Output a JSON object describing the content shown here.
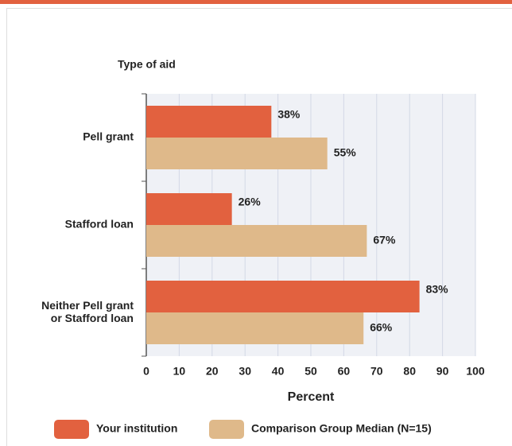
{
  "chart_data": {
    "type": "bar",
    "orientation": "horizontal",
    "y_axis_title": "Type of aid",
    "x_axis_title": "Percent",
    "categories": [
      "Pell grant",
      "Stafford loan",
      "Neither Pell grant\nor Stafford loan"
    ],
    "series": [
      {
        "name": "Your institution",
        "color": "#e2613f",
        "values": [
          38,
          26,
          83
        ],
        "value_labels": [
          "38%",
          "26%",
          "83%"
        ]
      },
      {
        "name": "Comparison Group Median (N=15)",
        "color": "#dfb98a",
        "values": [
          55,
          67,
          66
        ],
        "value_labels": [
          "55%",
          "67%",
          "66%"
        ]
      }
    ],
    "xlim": [
      0,
      100
    ],
    "xticks": [
      0,
      10,
      20,
      30,
      40,
      50,
      60,
      70,
      80,
      90,
      100
    ],
    "grid": true
  }
}
